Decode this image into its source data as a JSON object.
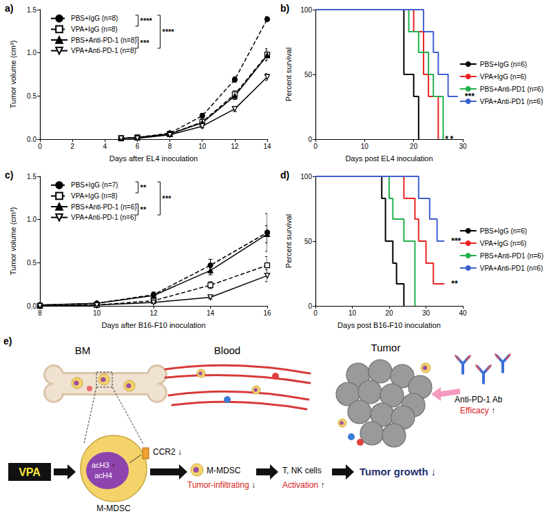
{
  "chart_data": [
    {
      "type": "line",
      "title": "a)",
      "x_label": "Days after EL4 inoculation",
      "y_label": "Tumor volume (cm³)",
      "x": [
        5,
        6,
        8,
        10,
        12,
        14
      ],
      "xlim": [
        0,
        14
      ],
      "xticks": [
        0,
        2,
        4,
        6,
        8,
        10,
        12,
        14
      ],
      "ylim": [
        0,
        1.5
      ],
      "yticks": [
        {
          "value": 0,
          "label": "0.0"
        },
        {
          "value": 0.5,
          "label": "0.5"
        },
        {
          "value": 1,
          "label": "1.0"
        },
        {
          "value": 1.5,
          "label": "1.5"
        }
      ],
      "grid": false,
      "legend": "upper left",
      "series": [
        {
          "name": "PBS+IgG (n=8)",
          "color": "#000000",
          "marker": "circle",
          "line_style": "dashed",
          "values": [
            0.01,
            0.02,
            0.07,
            0.27,
            0.69,
            1.39
          ],
          "errors": [
            0.003,
            0.005,
            0.01,
            0.03,
            0.03,
            0.03
          ]
        },
        {
          "name": "VPA+IgG (n=8)",
          "color": "#000000",
          "marker": "open_square",
          "line_style": "dashed",
          "values": [
            0.01,
            0.02,
            0.06,
            0.2,
            0.52,
            0.98
          ],
          "errors": [
            0.003,
            0.005,
            0.01,
            0.02,
            0.04,
            0.07
          ]
        },
        {
          "name": "PBS+Anti-PD-1 (n=8)",
          "color": "#000000",
          "marker": "triangle",
          "line_style": "solid",
          "values": [
            0.01,
            0.02,
            0.06,
            0.19,
            0.5,
            0.97
          ],
          "errors": [
            0.003,
            0.005,
            0.01,
            0.02,
            0.04,
            0.06
          ]
        },
        {
          "name": "VPA+Anti-PD-1 (n=8)",
          "color": "#000000",
          "marker": "open_inverted_triangle",
          "line_style": "solid",
          "values": [
            0.01,
            0.01,
            0.05,
            0.15,
            0.35,
            0.72
          ],
          "errors": [
            0.003,
            0.005,
            0.01,
            0.02,
            0.03,
            0.04
          ]
        }
      ],
      "comparisons": [
        {
          "groups": [
            0,
            1
          ],
          "label": "****"
        },
        {
          "groups": [
            2,
            3
          ],
          "label": "***"
        },
        {
          "groups": [
            0,
            3
          ],
          "label": "****"
        }
      ]
    },
    {
      "type": "survival",
      "title": "b)",
      "x_label": "Days post EL4 inoculation",
      "y_label": "Percent survival",
      "xlim": [
        0,
        30
      ],
      "xticks": [
        0,
        10,
        20,
        30
      ],
      "ylim": [
        0,
        100
      ],
      "yticks": [
        0,
        50,
        100
      ],
      "grid": false,
      "legend": "right",
      "series": [
        {
          "name": "PBS+IgG (n=6)",
          "color": "#000000",
          "line_style": "solid",
          "x": [
            0,
            18,
            20,
            21
          ],
          "values": [
            100,
            50,
            33,
            0
          ]
        },
        {
          "name": "VPA+IgG (n=6)",
          "color": "#e8231f",
          "line_style": "solid",
          "x": [
            0,
            20,
            22,
            23,
            25
          ],
          "values": [
            100,
            83,
            50,
            33,
            0
          ],
          "significance": "*"
        },
        {
          "name": "PBS+Anti-PD1 (n=6)",
          "color": "#22b14c",
          "line_style": "solid",
          "x": [
            0,
            19,
            21,
            23,
            24,
            26
          ],
          "values": [
            100,
            83,
            67,
            50,
            33,
            0
          ],
          "significance": "*"
        },
        {
          "name": "VPA+Anti-PD1 (n=6)",
          "color": "#3f5fd0",
          "line_style": "solid",
          "x": [
            0,
            22,
            24,
            25,
            27,
            29
          ],
          "values": [
            100,
            83,
            67,
            50,
            33,
            33
          ],
          "significance": "***"
        }
      ]
    },
    {
      "type": "line",
      "title": "c)",
      "x_label": "Days after B16-F10 inoculation",
      "y_label": "Tumor volume (cm³)",
      "x": [
        8,
        10,
        12,
        14,
        16
      ],
      "xlim": [
        8,
        16
      ],
      "xticks": [
        8,
        10,
        12,
        14,
        16
      ],
      "ylim": [
        0,
        1.5
      ],
      "yticks": [
        {
          "value": 0,
          "label": "0.0"
        },
        {
          "value": 0.5,
          "label": "0.5"
        },
        {
          "value": 1,
          "label": "1.0"
        },
        {
          "value": 1.5,
          "label": "1.5"
        }
      ],
      "grid": false,
      "legend": "upper left",
      "series": [
        {
          "name": "PBS+IgG (n=7)",
          "color": "#000000",
          "marker": "circle",
          "line_style": "dashed",
          "values": [
            0.01,
            0.03,
            0.13,
            0.47,
            0.85
          ],
          "errors": [
            0.003,
            0.01,
            0.03,
            0.07,
            0.22
          ]
        },
        {
          "name": "VPA+IgG (n=8)",
          "color": "#000000",
          "marker": "open_square",
          "line_style": "dashed",
          "values": [
            0,
            0.01,
            0.06,
            0.24,
            0.47
          ],
          "errors": [
            0.002,
            0.005,
            0.02,
            0.04,
            0.1
          ]
        },
        {
          "name": "PBS+Anti-PD-1 (n=6)",
          "color": "#000000",
          "marker": "triangle",
          "line_style": "solid",
          "values": [
            0.01,
            0.03,
            0.12,
            0.41,
            0.83
          ],
          "errors": [
            0.003,
            0.01,
            0.02,
            0.05,
            0.1
          ]
        },
        {
          "name": "VPA+Anti-PD-1 (n=6)",
          "color": "#000000",
          "marker": "open_inverted_triangle",
          "line_style": "solid",
          "values": [
            0,
            0.01,
            0.04,
            0.1,
            0.35
          ],
          "errors": [
            0.002,
            0.005,
            0.01,
            0.02,
            0.07
          ]
        }
      ],
      "comparisons": [
        {
          "groups": [
            0,
            1
          ],
          "label": "**"
        },
        {
          "groups": [
            2,
            3
          ],
          "label": "**"
        },
        {
          "groups": [
            0,
            3
          ],
          "label": "***"
        }
      ]
    },
    {
      "type": "survival",
      "title": "d)",
      "x_label": "Days post B16-F10 inoculation",
      "y_label": "Percent survival",
      "xlim": [
        0,
        40
      ],
      "xticks": [
        0,
        10,
        20,
        30,
        40
      ],
      "ylim": [
        0,
        100
      ],
      "yticks": [
        0,
        50,
        100
      ],
      "grid": false,
      "legend": "right",
      "series": [
        {
          "name": "PBS+IgG (n=6)",
          "color": "#000000",
          "line_style": "solid",
          "x": [
            0,
            18,
            19,
            21,
            22,
            24
          ],
          "values": [
            100,
            83,
            50,
            33,
            17,
            0
          ]
        },
        {
          "name": "VPA+IgG (n=6)",
          "color": "#e8231f",
          "line_style": "solid",
          "x": [
            0,
            24,
            27,
            28,
            30,
            32,
            35
          ],
          "values": [
            100,
            83,
            67,
            50,
            33,
            17,
            17
          ],
          "significance": "**"
        },
        {
          "name": "PBS+Anti-PD1 (n=6)",
          "color": "#22b14c",
          "line_style": "solid",
          "x": [
            0,
            20,
            21,
            24,
            27
          ],
          "values": [
            100,
            83,
            67,
            50,
            0
          ]
        },
        {
          "name": "VPA+Anti-PD1 (n=6)",
          "color": "#3f5fd0",
          "line_style": "solid",
          "x": [
            0,
            28,
            31,
            33,
            35
          ],
          "values": [
            100,
            83,
            67,
            50,
            50
          ],
          "significance": "***"
        }
      ]
    }
  ],
  "diagram": {
    "panel": "e)",
    "regions": [
      "BM",
      "Blood",
      "Tumor"
    ],
    "drug": "VPA",
    "histone_marks": [
      "acH3",
      "acH4"
    ],
    "histone_change": "↑",
    "receptor": "CCR2",
    "receptor_change": "↓",
    "cell": "M-MDSC",
    "antibody": "Anti-PD-1 Ab",
    "antibody_effect": "Efficacy",
    "antibody_change": "↑",
    "flow": [
      {
        "label": "M-MDSC",
        "effect": "Tumor-infiltrating",
        "change": "↓"
      },
      {
        "label": "T, NK cells",
        "effect": "Activation",
        "change": "↑"
      },
      {
        "label": "Tumor growth",
        "change": "↓"
      }
    ]
  }
}
